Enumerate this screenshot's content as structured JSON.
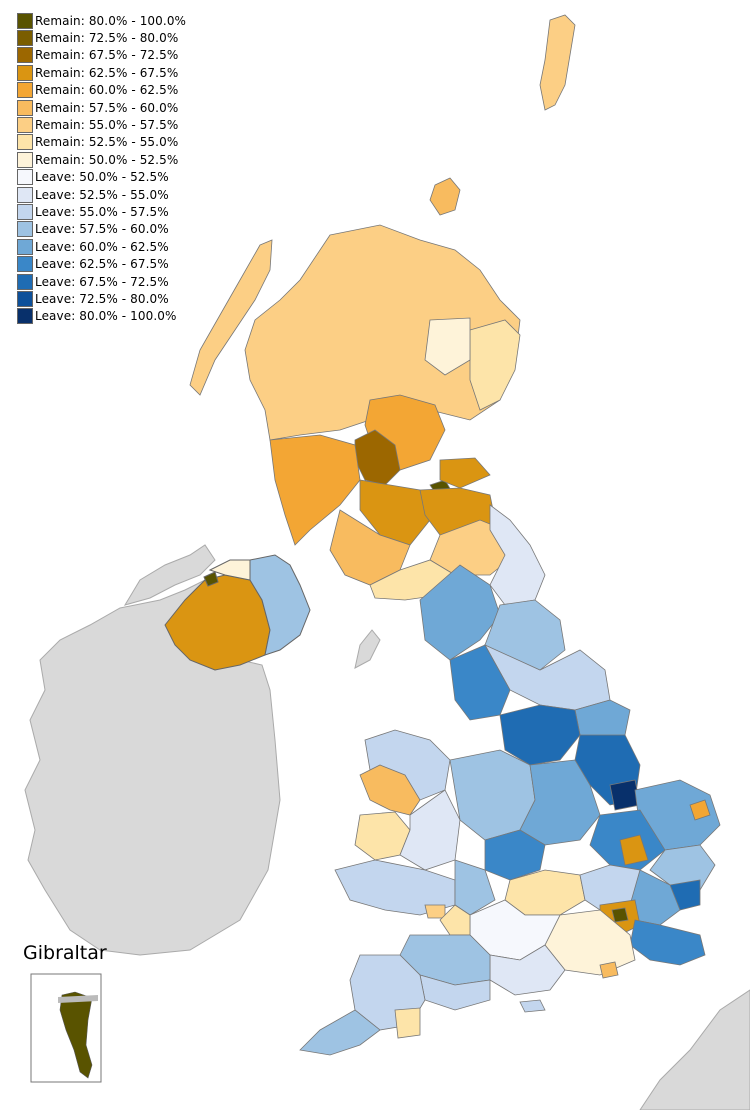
{
  "legend": {
    "items": [
      {
        "label": "Remain: 80.0% - 100.0%",
        "color": "#595300"
      },
      {
        "label": "Remain: 72.5% - 80.0%",
        "color": "#7a5d00"
      },
      {
        "label": "Remain: 67.5% - 72.5%",
        "color": "#9c6700"
      },
      {
        "label": "Remain: 62.5% - 67.5%",
        "color": "#da9512"
      },
      {
        "label": "Remain: 60.0% - 62.5%",
        "color": "#f3a634"
      },
      {
        "label": "Remain: 57.5% - 60.0%",
        "color": "#f8bb5f"
      },
      {
        "label": "Remain: 55.0% - 57.5%",
        "color": "#fccf85"
      },
      {
        "label": "Remain: 52.5% - 55.0%",
        "color": "#fde4a9"
      },
      {
        "label": "Remain: 50.0% - 52.5%",
        "color": "#fef3d9"
      },
      {
        "label": "Leave: 50.0% - 52.5%",
        "color": "#f6f8fd"
      },
      {
        "label": "Leave: 52.5% - 55.0%",
        "color": "#dfe7f5"
      },
      {
        "label": "Leave: 55.0% - 57.5%",
        "color": "#c3d6ee"
      },
      {
        "label": "Leave: 57.5% - 60.0%",
        "color": "#9ec3e3"
      },
      {
        "label": "Leave: 60.0% - 62.5%",
        "color": "#6fa8d6"
      },
      {
        "label": "Leave: 62.5% - 67.5%",
        "color": "#3a87c8"
      },
      {
        "label": "Leave: 67.5% - 72.5%",
        "color": "#1f6cb3"
      },
      {
        "label": "Leave: 72.5% - 80.0%",
        "color": "#0d509a"
      },
      {
        "label": "Leave: 80.0% - 100.0%",
        "color": "#08306b"
      }
    ]
  },
  "inset": {
    "title": "Gibraltar",
    "color": "#595300"
  },
  "colors": {
    "neighbour_land": "#d9d9d9",
    "border": "#777777",
    "sea": "#ffffff"
  }
}
